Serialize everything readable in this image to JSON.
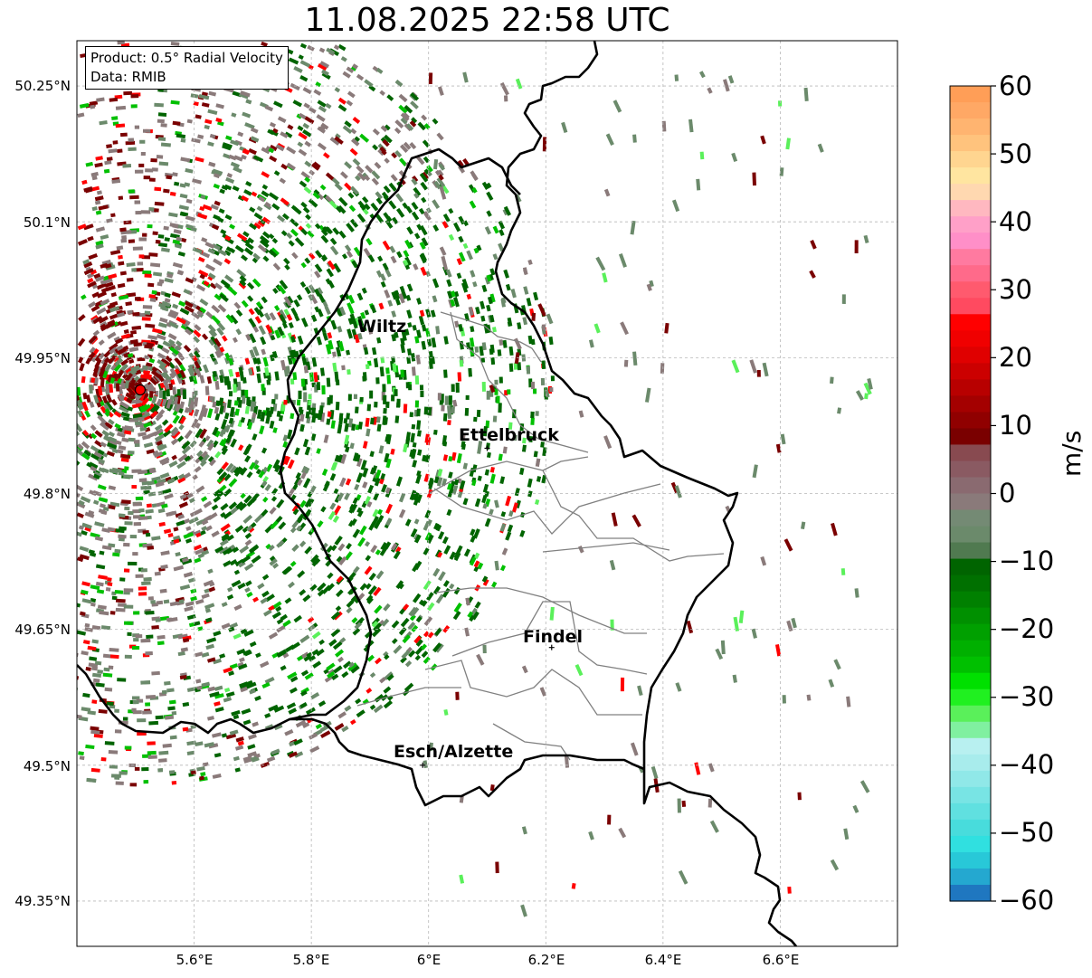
{
  "title": "11.08.2025 22:58 UTC",
  "info": {
    "line1": "Product: 0.5° Radial Velocity",
    "line2": "Data: RMIB"
  },
  "map": {
    "lon_range": [
      5.4,
      6.8
    ],
    "lat_range": [
      49.3,
      50.3
    ],
    "lat_ticks": [
      "50.25°N",
      "50.1°N",
      "49.95°N",
      "49.8°N",
      "49.65°N",
      "49.5°N",
      "49.35°N"
    ],
    "lon_ticks": [
      "5.6°E",
      "5.8°E",
      "6°E",
      "6.2°E",
      "6.4°E",
      "6.6°E"
    ],
    "radar_site": {
      "lon": 5.505,
      "lat": 49.914
    },
    "cities": [
      {
        "name": "Wiltz",
        "lon": 5.93,
        "lat": 49.97
      },
      {
        "name": "Ettelbruck",
        "lon": 6.1,
        "lat": 49.85
      },
      {
        "name": "Findel",
        "lon": 6.21,
        "lat": 49.63
      },
      {
        "name": "Esch/Alzette",
        "lon": 5.99,
        "lat": 49.5
      }
    ]
  },
  "colorbar": {
    "label": "m/s",
    "min": -60,
    "max": 60,
    "ticks": [
      "60",
      "50",
      "40",
      "30",
      "20",
      "10",
      "0",
      "−10",
      "−20",
      "−30",
      "−40",
      "−50",
      "−60"
    ],
    "colors": {
      "orange": "#ff9e57",
      "light_orange": "#ffc37d",
      "pale_yellow": "#ffe5a0",
      "pink": "#ff8fc8",
      "salmon": "#ff5a6e",
      "red": "#ff0000",
      "dark_red": "#7a0000",
      "mauve": "#8a7a7a",
      "grey_green": "#6b8a6b",
      "dark_green": "#006400",
      "green": "#00c000",
      "light_green": "#5af05a",
      "pale_cyan": "#b8f0f0",
      "cyan": "#30e0e0",
      "blue": "#1f77c0"
    }
  }
}
